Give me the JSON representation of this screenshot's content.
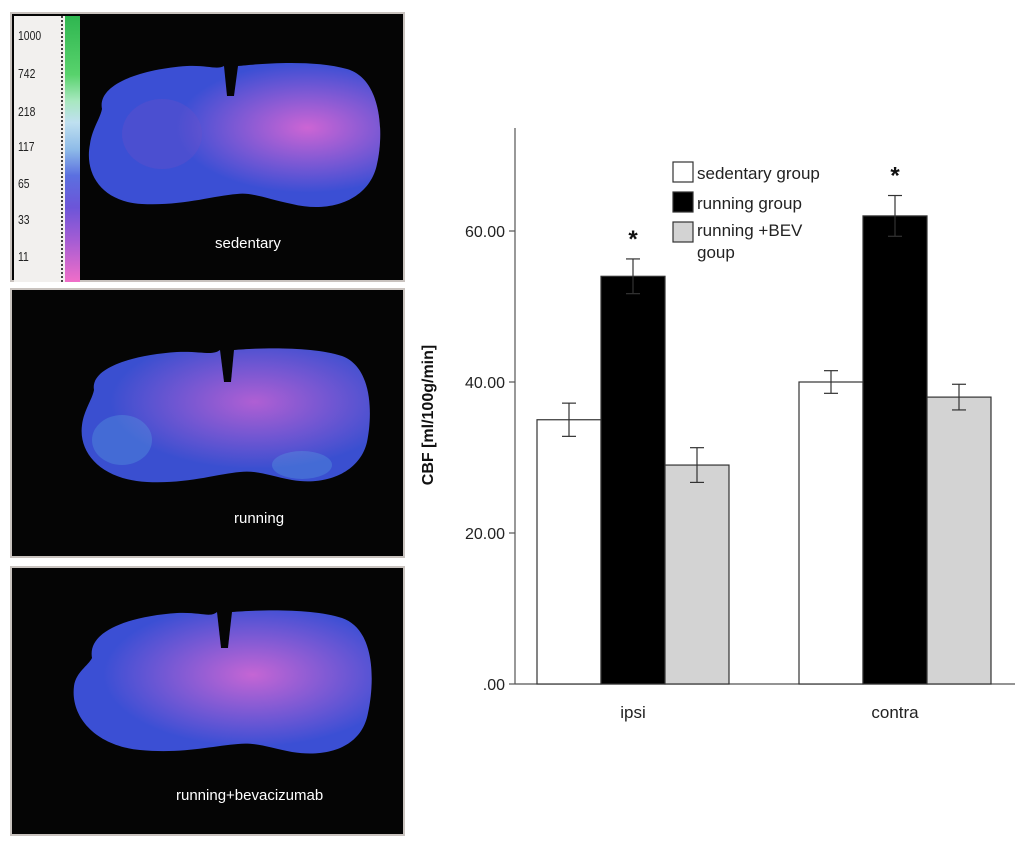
{
  "panels": {
    "sedentary_label": "sedentary",
    "running_label": "running",
    "bev_label": "running+bevacizumab",
    "scale_ticks": [
      "1000",
      "742",
      "218",
      "117",
      "65",
      "33",
      "11"
    ]
  },
  "colors": {
    "tissue_blue": "#3a4fd6",
    "tissue_pink": "#c060d8",
    "panel_bg": "#050505"
  },
  "chart_data": {
    "type": "bar",
    "categories": [
      "ipsi",
      "contra"
    ],
    "series": [
      {
        "name": "sedentary group",
        "values": [
          35.0,
          40.0
        ],
        "errors": [
          2.2,
          1.5
        ],
        "color": "#ffffff"
      },
      {
        "name": "running group",
        "values": [
          54.0,
          62.0
        ],
        "errors": [
          2.3,
          2.7
        ],
        "color": "#000000"
      },
      {
        "name": "running +BEV goup",
        "values": [
          29.0,
          38.0
        ],
        "errors": [
          2.3,
          1.7
        ],
        "color": "#d3d3d3"
      }
    ],
    "significance": [
      [
        "",
        "*",
        ""
      ],
      [
        "",
        "*",
        ""
      ]
    ],
    "ylabel": "CBF [ml/100g/min]",
    "yticks": [
      ".00",
      "20.00",
      "40.00",
      "60.00"
    ],
    "ylim": [
      0,
      73
    ],
    "legend_position": "top-center",
    "grid": false
  }
}
